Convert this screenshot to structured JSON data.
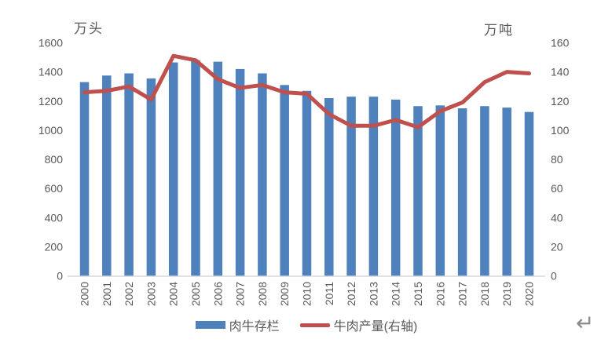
{
  "chart_data": {
    "type": "bar",
    "title": "",
    "categories": [
      "2000",
      "2001",
      "2002",
      "2003",
      "2004",
      "2005",
      "2006",
      "2007",
      "2008",
      "2009",
      "2010",
      "2011",
      "2012",
      "2013",
      "2014",
      "2015",
      "2016",
      "2017",
      "2018",
      "2019",
      "2020"
    ],
    "series": [
      {
        "name": "肉牛存栏",
        "type": "bar",
        "axis": "left",
        "color": "#4F81BD",
        "values": [
          1330,
          1375,
          1390,
          1355,
          1465,
          1480,
          1470,
          1420,
          1390,
          1310,
          1270,
          1220,
          1230,
          1230,
          1210,
          1165,
          1170,
          1150,
          1165,
          1155,
          1125
        ]
      },
      {
        "name": "牛肉产量(右轴)",
        "type": "line",
        "axis": "right",
        "color": "#C0504D",
        "values": [
          126,
          127,
          130,
          121,
          151,
          148,
          135,
          129,
          131,
          126,
          125,
          111,
          103,
          103,
          107,
          102,
          113,
          119,
          133,
          140,
          139
        ]
      }
    ],
    "left_axis": {
      "unit_label": "万头",
      "min": 0,
      "max": 1600,
      "step": 200,
      "tick_labels": [
        "0",
        "200",
        "400",
        "600",
        "800",
        "1000",
        "1200",
        "1400",
        "1600"
      ]
    },
    "right_axis": {
      "unit_label": "万吨",
      "min": 0,
      "max": 160,
      "step": 20,
      "tick_labels": [
        "0",
        "20",
        "40",
        "60",
        "80",
        "100",
        "120",
        "140",
        "160"
      ]
    },
    "grid": false,
    "legend_position": "bottom",
    "x_tick_rotation": -90
  },
  "colors": {
    "bar": "#4F81BD",
    "line": "#C0504D",
    "axis_text": "#595959",
    "axis_line": "#D9D9D9"
  },
  "page": {
    "return_mark": "↵"
  }
}
